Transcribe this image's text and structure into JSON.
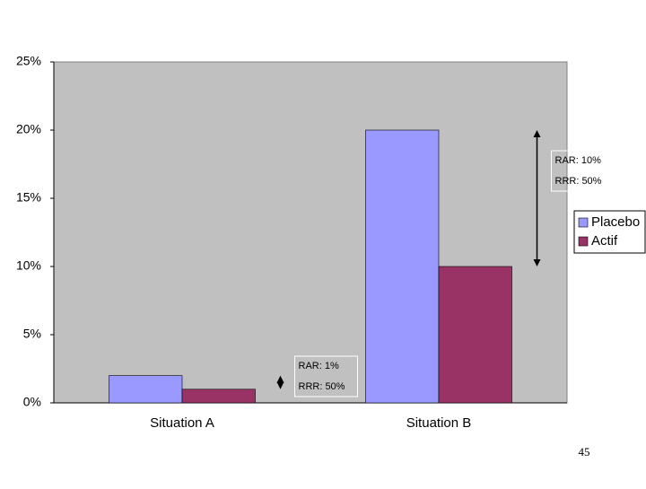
{
  "chart_data": {
    "type": "bar",
    "categories": [
      "Situation A",
      "Situation B"
    ],
    "series": [
      {
        "name": "Placebo",
        "color": "#9999ff",
        "values": [
          2,
          20
        ]
      },
      {
        "name": "Actif",
        "color": "#993366",
        "values": [
          1,
          10
        ]
      }
    ],
    "ylim": [
      0,
      25
    ],
    "yticks": [
      {
        "value": 0,
        "label": "0%"
      },
      {
        "value": 5,
        "label": "5%"
      },
      {
        "value": 10,
        "label": "10%"
      },
      {
        "value": 15,
        "label": "15%"
      },
      {
        "value": 20,
        "label": "20%"
      },
      {
        "value": 25,
        "label": "25%"
      }
    ],
    "grid": false,
    "legend": "right",
    "plot_background": "#c0c0c0",
    "annotations": [
      {
        "lines": [
          "RAR: 1%",
          "RRR: 50%"
        ]
      },
      {
        "lines": [
          "RAR: 10%",
          "RRR: 50%"
        ]
      }
    ]
  },
  "page_number": 45
}
